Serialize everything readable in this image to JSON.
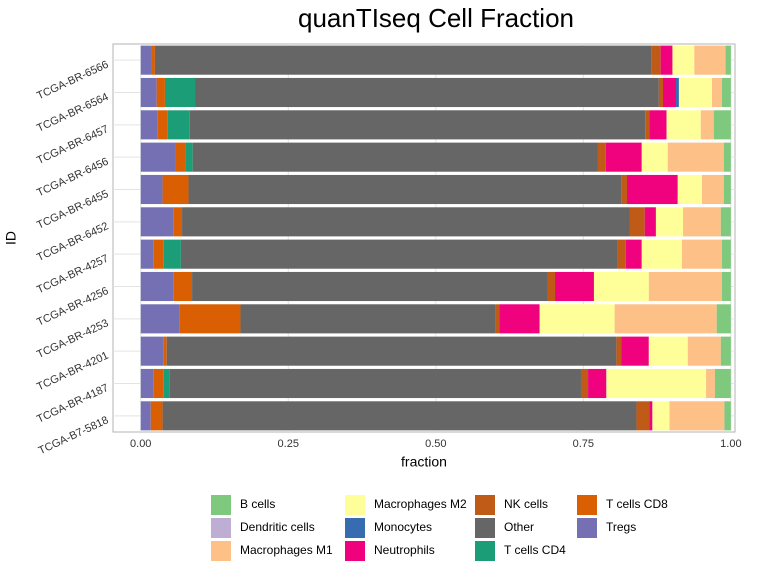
{
  "chart_data": {
    "type": "stacked-barh",
    "title": "quanTIseq Cell Fraction",
    "x_label": "fraction",
    "y_label": "ID",
    "categories": [
      "TCGA-B7-5818",
      "TCGA-BR-4187",
      "TCGA-BR-4201",
      "TCGA-BR-4253",
      "TCGA-BR-4256",
      "TCGA-BR-4257",
      "TCGA-BR-6452",
      "TCGA-BR-6455",
      "TCGA-BR-6456",
      "TCGA-BR-6457",
      "TCGA-BR-6564",
      "TCGA-BR-6566"
    ],
    "series": [
      {
        "name": "B cells",
        "color": "#7fc97f",
        "values": [
          0.011,
          0.027,
          0.017,
          0.024,
          0.015,
          0.015,
          0.017,
          0.012,
          0.012,
          0.029,
          0.015,
          0.009
        ]
      },
      {
        "name": "Dendritic cells",
        "color": "#beaed4",
        "values": [
          0,
          0,
          0,
          0,
          0,
          0,
          0,
          0,
          0,
          0,
          0,
          0
        ]
      },
      {
        "name": "Macrophages M1",
        "color": "#fdc086",
        "values": [
          0.093,
          0.015,
          0.056,
          0.173,
          0.124,
          0.068,
          0.064,
          0.037,
          0.095,
          0.022,
          0.017,
          0.053
        ]
      },
      {
        "name": "Macrophages M2",
        "color": "#ffff99",
        "values": [
          0.029,
          0.169,
          0.066,
          0.127,
          0.093,
          0.068,
          0.046,
          0.041,
          0.044,
          0.058,
          0.056,
          0.037
        ]
      },
      {
        "name": "Monocytes",
        "color": "#386cb0",
        "values": [
          0,
          0,
          0,
          0,
          0,
          0,
          0,
          0,
          0,
          0,
          0.005,
          0
        ]
      },
      {
        "name": "Neutrophils",
        "color": "#f0027f",
        "values": [
          0.005,
          0.031,
          0.047,
          0.068,
          0.066,
          0.027,
          0.019,
          0.086,
          0.061,
          0.029,
          0.022,
          0.02
        ]
      },
      {
        "name": "NK cells",
        "color": "#bf5b17",
        "values": [
          0.022,
          0.012,
          0.008,
          0.007,
          0.012,
          0.014,
          0.025,
          0.01,
          0.014,
          0.007,
          0.007,
          0.015
        ]
      },
      {
        "name": "Other",
        "color": "#666666",
        "values": [
          0.803,
          0.697,
          0.762,
          0.432,
          0.603,
          0.74,
          0.759,
          0.733,
          0.686,
          0.772,
          0.786,
          0.842
        ]
      },
      {
        "name": "T cells CD4",
        "color": "#1b9e77",
        "values": [
          0,
          0.01,
          0,
          0,
          0,
          0.029,
          0,
          0,
          0.012,
          0.037,
          0.051,
          0
        ]
      },
      {
        "name": "T cells CD8",
        "color": "#d95f02",
        "values": [
          0.02,
          0.017,
          0.005,
          0.103,
          0.031,
          0.017,
          0.014,
          0.044,
          0.017,
          0.017,
          0.014,
          0.005
        ]
      },
      {
        "name": "Tregs",
        "color": "#7570b3",
        "values": [
          0.017,
          0.022,
          0.039,
          0.066,
          0.056,
          0.022,
          0.056,
          0.037,
          0.059,
          0.029,
          0.027,
          0.019
        ]
      }
    ],
    "xlim": [
      -0.047,
      1.007
    ],
    "xticks": [
      {
        "value": 0,
        "label": "0.00"
      },
      {
        "value": 0.25,
        "label": "0.25"
      },
      {
        "value": 0.5,
        "label": "0.50"
      },
      {
        "value": 0.75,
        "label": "0.75"
      },
      {
        "value": 1,
        "label": "1.00"
      }
    ],
    "grid": true
  }
}
